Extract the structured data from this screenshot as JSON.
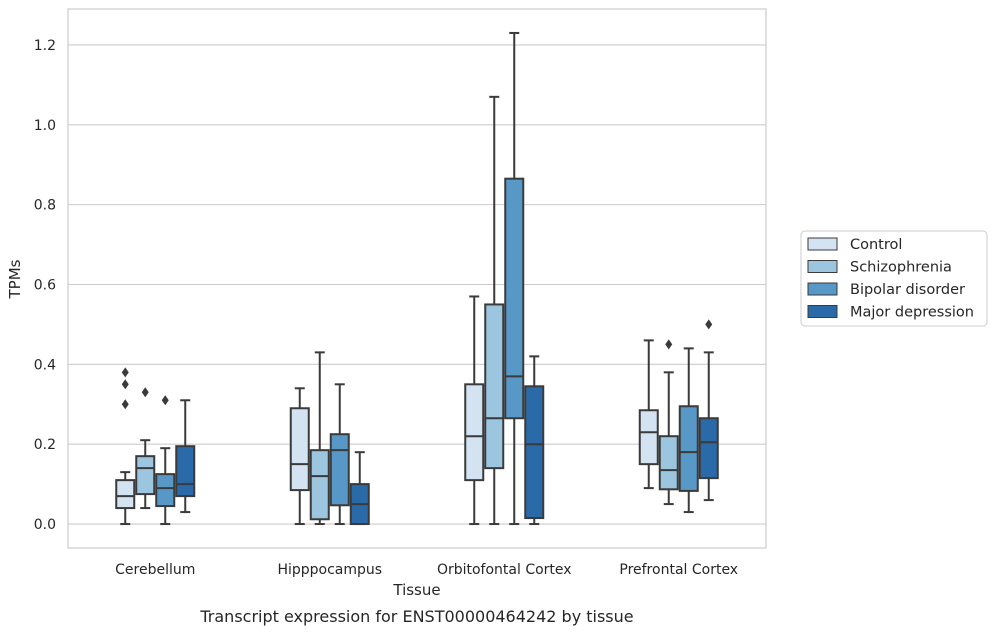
{
  "caption": "Transcript expression for ENST00000464242 by tissue",
  "chart_data": {
    "type": "box",
    "xlabel": "Tissue",
    "ylabel": "TPMs",
    "ylim": [
      -0.06,
      1.29
    ],
    "yticks": [
      0.0,
      0.2,
      0.4,
      0.6,
      0.8,
      1.0,
      1.2
    ],
    "ytick_labels": [
      "0.0",
      "0.2",
      "0.4",
      "0.6",
      "0.8",
      "1.0",
      "1.2"
    ],
    "grid": "horizontal",
    "legend_placement": "right-center",
    "categories": [
      "Cerebellum",
      "Hipppocampus",
      "Orbitofontal Cortex",
      "Prefrontal Cortex"
    ],
    "series": [
      {
        "name": "Control",
        "color": "#d3e3f2",
        "boxes": [
          {
            "whisker_low": 0.0,
            "q1": 0.04,
            "median": 0.07,
            "q3": 0.11,
            "whisker_high": 0.13,
            "outliers": []
          },
          {
            "whisker_low": 0.0,
            "q1": 0.085,
            "median": 0.15,
            "q3": 0.29,
            "whisker_high": 0.34,
            "outliers": []
          },
          {
            "whisker_low": 0.0,
            "q1": 0.11,
            "median": 0.22,
            "q3": 0.35,
            "whisker_high": 0.57,
            "outliers": []
          },
          {
            "whisker_low": 0.09,
            "q1": 0.15,
            "median": 0.23,
            "q3": 0.285,
            "whisker_high": 0.46,
            "outliers": []
          }
        ]
      },
      {
        "name": "Schizophrenia",
        "color": "#9cc6df",
        "boxes": [
          {
            "whisker_low": 0.04,
            "q1": 0.075,
            "median": 0.14,
            "q3": 0.17,
            "whisker_high": 0.21,
            "outliers": [
              0.33
            ]
          },
          {
            "whisker_low": 0.0,
            "q1": 0.012,
            "median": 0.12,
            "q3": 0.185,
            "whisker_high": 0.43,
            "outliers": []
          },
          {
            "whisker_low": 0.0,
            "q1": 0.14,
            "median": 0.265,
            "q3": 0.55,
            "whisker_high": 1.07,
            "outliers": []
          },
          {
            "whisker_low": 0.05,
            "q1": 0.087,
            "median": 0.135,
            "q3": 0.22,
            "whisker_high": 0.38,
            "outliers": [
              0.45
            ]
          }
        ]
      },
      {
        "name": "Bipolar disorder",
        "color": "#5898c7",
        "boxes": [
          {
            "whisker_low": 0.0,
            "q1": 0.045,
            "median": 0.09,
            "q3": 0.125,
            "whisker_high": 0.19,
            "outliers": [
              0.31
            ]
          },
          {
            "whisker_low": 0.0,
            "q1": 0.047,
            "median": 0.185,
            "q3": 0.225,
            "whisker_high": 0.35,
            "outliers": []
          },
          {
            "whisker_low": 0.0,
            "q1": 0.265,
            "median": 0.37,
            "q3": 0.865,
            "whisker_high": 1.23,
            "outliers": []
          },
          {
            "whisker_low": 0.03,
            "q1": 0.083,
            "median": 0.18,
            "q3": 0.295,
            "whisker_high": 0.44,
            "outliers": []
          }
        ]
      },
      {
        "name": "Major depression",
        "color": "#2b6aa8",
        "boxes": [
          {
            "whisker_low": 0.03,
            "q1": 0.07,
            "median": 0.1,
            "q3": 0.195,
            "whisker_high": 0.31,
            "outliers": []
          },
          {
            "whisker_low": 0.0,
            "q1": 0.0,
            "median": 0.05,
            "q3": 0.1,
            "whisker_high": 0.18,
            "outliers": []
          },
          {
            "whisker_low": 0.0,
            "q1": 0.015,
            "median": 0.2,
            "q3": 0.345,
            "whisker_high": 0.42,
            "outliers": []
          },
          {
            "whisker_low": 0.06,
            "q1": 0.115,
            "median": 0.205,
            "q3": 0.265,
            "whisker_high": 0.43,
            "outliers": [
              0.5
            ]
          }
        ]
      }
    ],
    "extra_outliers": [
      {
        "series": 0,
        "category": 0,
        "values": [
          0.3,
          0.35,
          0.38
        ]
      }
    ]
  }
}
